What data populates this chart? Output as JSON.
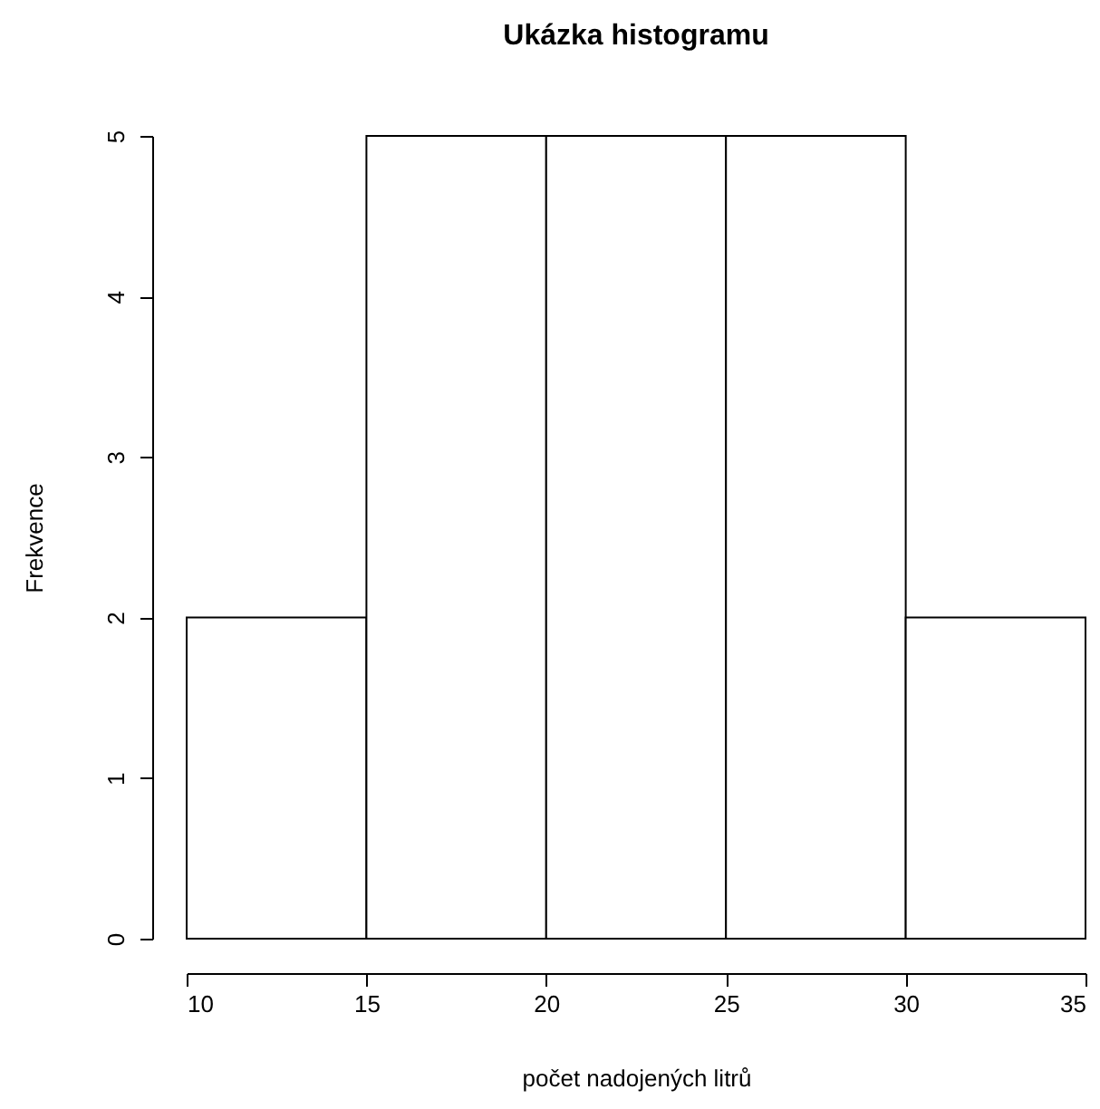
{
  "chart_data": {
    "type": "histogram",
    "title": "Ukázka histogramu",
    "xlabel": "počet nadojených litrů",
    "ylabel": "Frekvence",
    "bins": [
      10,
      15,
      20,
      25,
      30,
      35
    ],
    "values": [
      2,
      5,
      5,
      5,
      2
    ],
    "color": "#ffffff",
    "xlim": [
      10,
      35
    ],
    "xticks": [
      10,
      15,
      20,
      25,
      30,
      35
    ],
    "ylim": [
      0,
      5
    ],
    "yticks": [
      0,
      1,
      2,
      3,
      4,
      5
    ],
    "grid": false
  }
}
